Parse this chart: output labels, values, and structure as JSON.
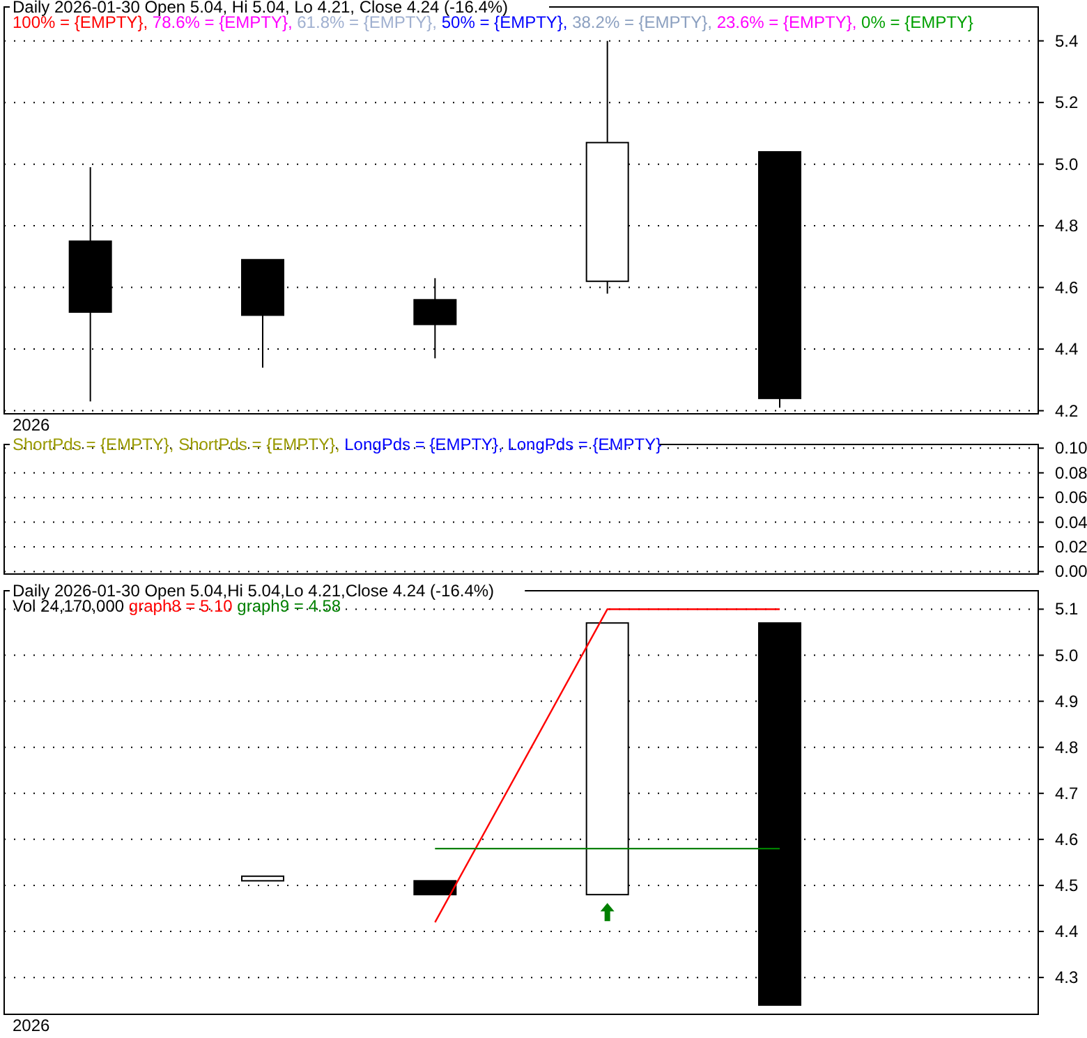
{
  "chart_data": [
    {
      "type": "candlestick",
      "title": "Daily 2026-01-30 Open 5.04, Hi 5.04, Lo 4.21, Close 4.24 (-16.4%)",
      "categories": [
        null,
        null,
        null,
        null,
        null,
        null
      ],
      "ohlc": [
        [
          4.75,
          4.99,
          4.23,
          4.52
        ],
        [
          4.69,
          4.69,
          4.34,
          4.51
        ],
        [
          4.56,
          4.63,
          4.37,
          4.48
        ],
        [
          4.62,
          5.4,
          4.58,
          5.07
        ],
        [
          5.04,
          5.04,
          4.21,
          4.24
        ],
        null
      ],
      "series": [
        {
          "type": "line",
          "name": "100% = {EMPTY},",
          "color": "#ff0000",
          "values": [
            null,
            null,
            null,
            null,
            null,
            null
          ]
        },
        {
          "type": "line",
          "name": "78.6% = {EMPTY},",
          "color": "#ff00ff",
          "values": [
            null,
            null,
            null,
            null,
            null,
            null
          ]
        },
        {
          "type": "line",
          "name": "61.8% = {EMPTY},",
          "color": "#a0b0d0",
          "values": [
            null,
            null,
            null,
            null,
            null,
            null
          ]
        },
        {
          "type": "line",
          "name": "50% = {EMPTY},",
          "color": "#0000ff",
          "values": [
            null,
            null,
            null,
            null,
            null,
            null
          ]
        },
        {
          "type": "line",
          "name": "38.2% = {EMPTY},",
          "color": "#8ca0c0",
          "values": [
            null,
            null,
            null,
            null,
            null,
            null
          ]
        },
        {
          "type": "line",
          "name": "23.6% = {EMPTY},",
          "color": "#ff00ff",
          "values": [
            null,
            null,
            null,
            null,
            null,
            null
          ]
        },
        {
          "type": "line",
          "name": "0% = {EMPTY}",
          "color": "#00a000",
          "values": [
            null,
            null,
            null,
            null,
            null,
            null
          ]
        }
      ],
      "ylim": [
        4.19,
        5.51
      ],
      "yticks": [
        4.2,
        4.4,
        4.6,
        4.8,
        {
          "value": 5,
          "label": "5.0"
        },
        5.2,
        5.4
      ],
      "grid": "y",
      "tick_labels": "y",
      "annotations": [
        "2026"
      ]
    },
    {
      "type": "line",
      "categories": [
        null,
        null,
        null,
        null,
        null,
        null
      ],
      "series": [
        {
          "name": "ShortPds = {EMPTY},",
          "color": "#999900",
          "values": [
            null,
            null,
            null,
            null,
            null,
            null
          ]
        },
        {
          "name": "ShortPds = {EMPTY},",
          "color": "#999900",
          "values": [
            null,
            null,
            null,
            null,
            null,
            null
          ]
        },
        {
          "name": "LongPds = {EMPTY},",
          "color": "#0000ff",
          "values": [
            null,
            null,
            null,
            null,
            null,
            null
          ]
        },
        {
          "name": "LongPds = {EMPTY}",
          "color": "#0000ff",
          "values": [
            null,
            null,
            null,
            null,
            null,
            null
          ]
        }
      ],
      "ylim": [
        -0.002,
        0.103
      ],
      "yticks": [
        {
          "value": 0,
          "label": "0.00"
        },
        {
          "value": 0.02,
          "label": "0.02"
        },
        {
          "value": 0.04,
          "label": "0.04"
        },
        {
          "value": 0.06,
          "label": "0.06"
        },
        {
          "value": 0.08,
          "label": "0.08"
        },
        {
          "value": 0.1,
          "label": "0.10"
        }
      ],
      "grid": "y",
      "tick_labels": "y"
    },
    {
      "type": "candlestick",
      "title": "Daily 2026-01-30 Open 5.04,Hi 5.04,Lo 4.21,Close 4.24 (-16.4%)",
      "categories": [
        null,
        null,
        null,
        null,
        null,
        null
      ],
      "ohlc": [
        null,
        [
          4.51,
          4.52,
          4.51,
          4.52
        ],
        [
          4.51,
          4.51,
          4.48,
          4.48
        ],
        [
          4.48,
          5.07,
          4.48,
          5.07
        ],
        [
          5.07,
          5.07,
          4.24,
          4.24
        ],
        null
      ],
      "series": [
        {
          "type": "line",
          "name": "graph8 = 5.10",
          "color": "#ff0000",
          "values": [
            null,
            null,
            4.42,
            5.1,
            5.1,
            null
          ]
        },
        {
          "type": "line",
          "name": "graph9 = 4.58",
          "color": "#008000",
          "values": [
            null,
            null,
            4.58,
            4.58,
            4.58,
            null
          ]
        }
      ],
      "ylim": [
        4.22,
        5.14
      ],
      "yticks": [
        4.3,
        4.4,
        4.5,
        4.6,
        4.7,
        4.8,
        4.9,
        {
          "value": 5,
          "label": "5.0"
        },
        5.1
      ],
      "grid": "y",
      "tick_labels": "y",
      "annotations": [
        "Vol 24,170,000",
        "2026"
      ]
    }
  ]
}
